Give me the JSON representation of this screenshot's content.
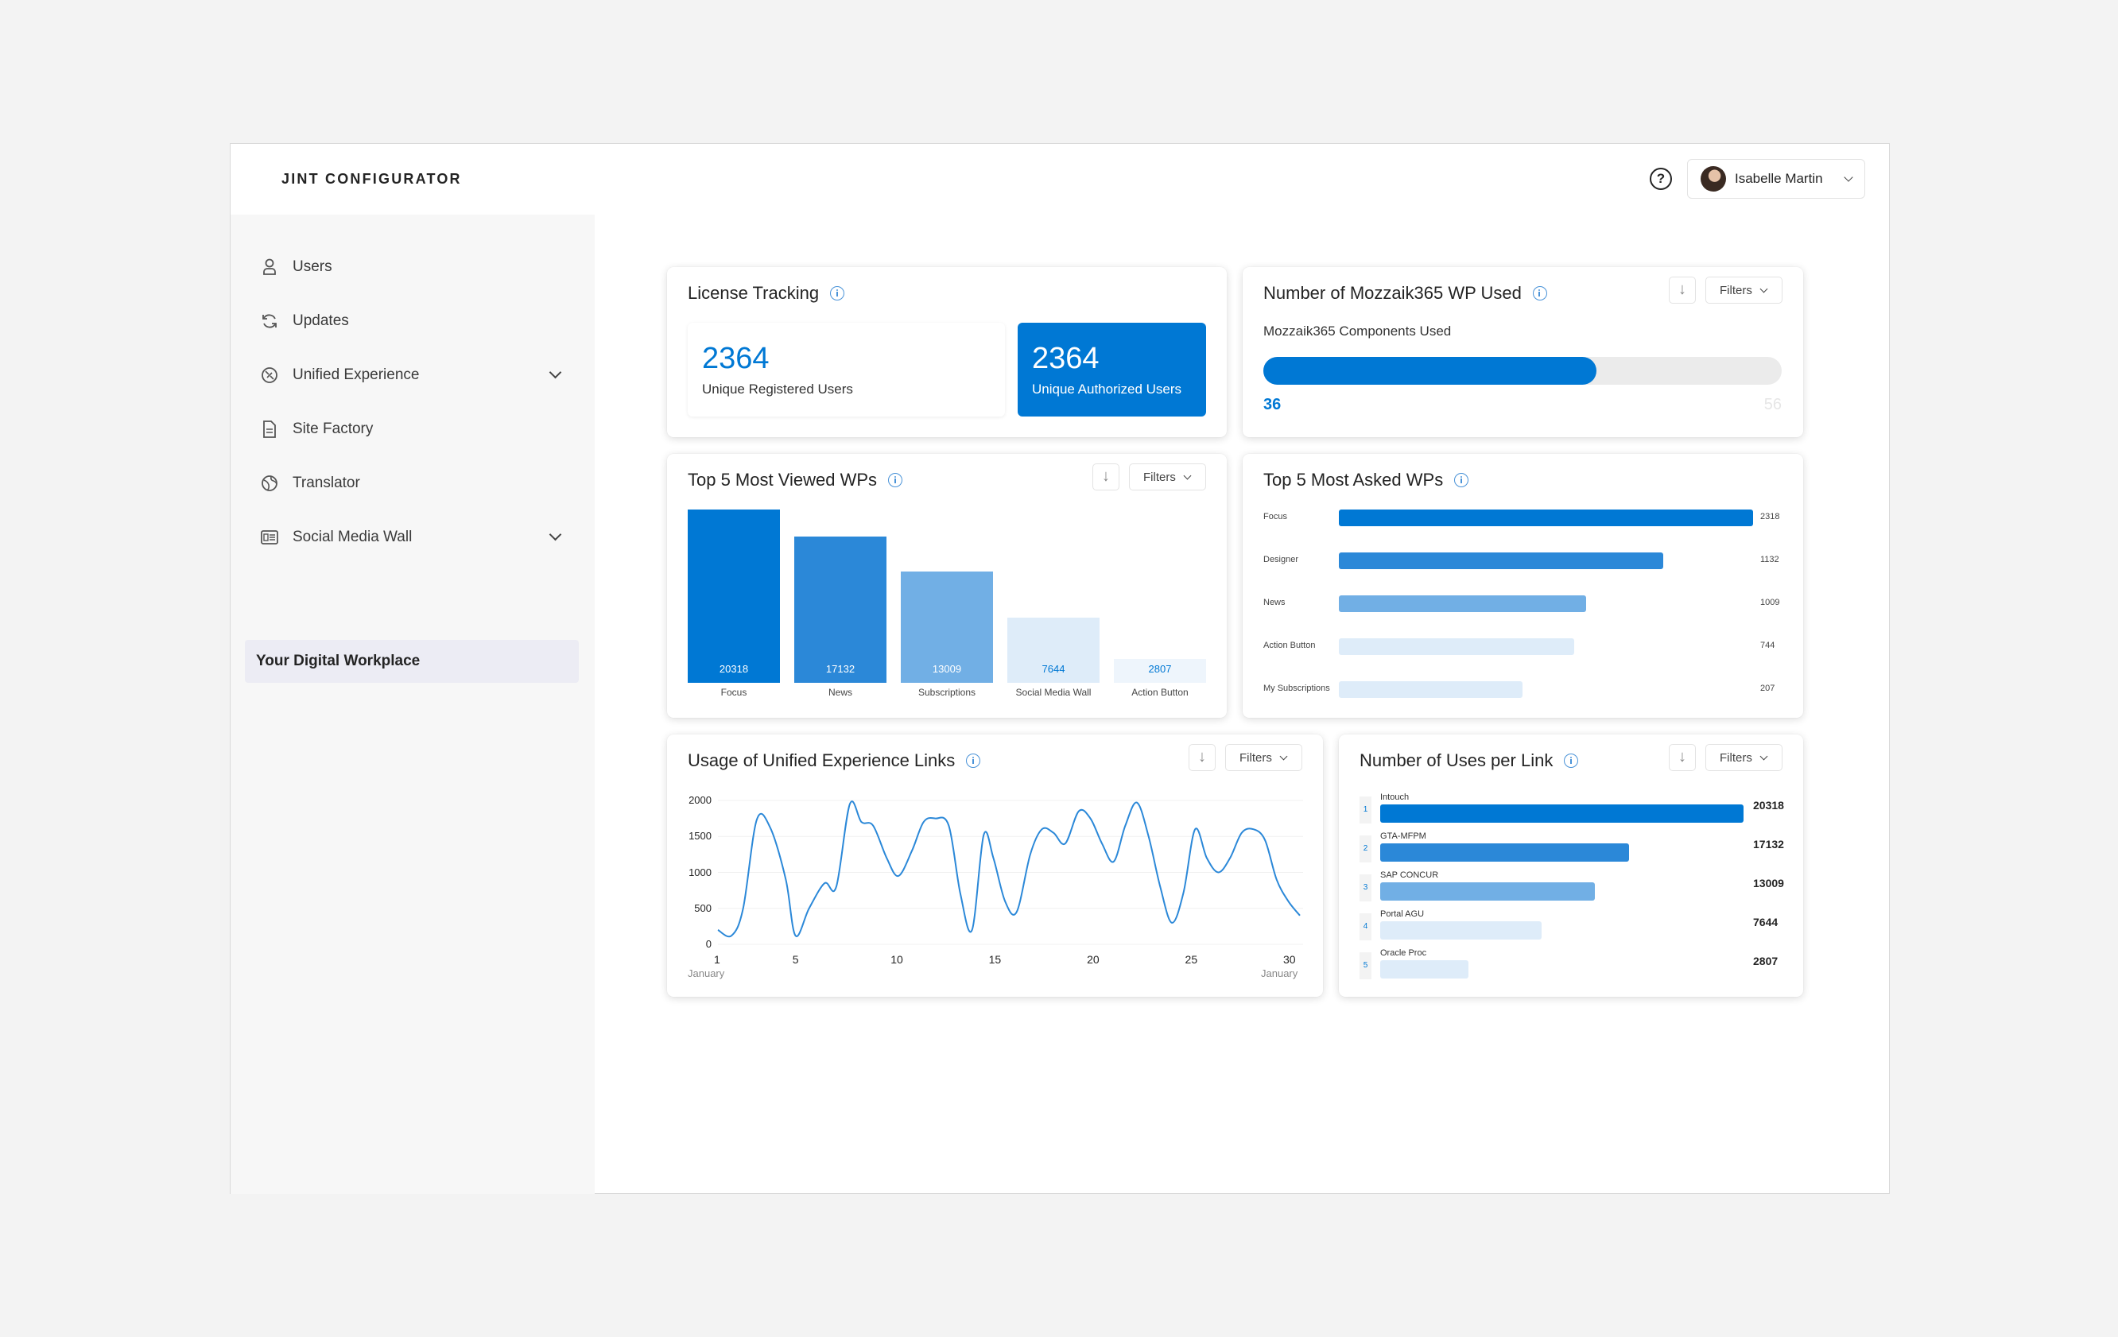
{
  "app": {
    "brand": "JINT CONFIGURATOR"
  },
  "header": {
    "help_icon": "help-circle-icon",
    "user_name": "Isabelle Martin"
  },
  "sidebar": {
    "items": [
      {
        "label": "Users",
        "icon": "user-icon"
      },
      {
        "label": "Updates",
        "icon": "refresh-icon"
      },
      {
        "label": "Unified Experience",
        "icon": "globe-link-icon",
        "expandable": true
      },
      {
        "label": "Site Factory",
        "icon": "document-icon"
      },
      {
        "label": "Translator",
        "icon": "globe-icon"
      },
      {
        "label": "Social Media Wall",
        "icon": "news-icon",
        "expandable": true
      },
      {
        "label": "Your Digital Workplace",
        "active": true
      }
    ]
  },
  "license": {
    "title": "License Tracking",
    "registered_value": "2364",
    "registered_label": "Unique Registered Users",
    "authorized_value": "2364",
    "authorized_label": "Unique Authorized Users"
  },
  "mozzaik": {
    "title": "Number of Mozzaik365 WP Used",
    "subtitle": "Mozzaik365 Components Used",
    "used": "36",
    "total": "56",
    "filters_label": "Filters"
  },
  "most_viewed": {
    "title": "Top 5 Most Viewed WPs",
    "filters_label": "Filters",
    "chart_data": {
      "type": "bar",
      "categories": [
        "Focus",
        "News",
        "Subscriptions",
        "Social Media Wall",
        "Action Button"
      ],
      "values": [
        20318,
        17132,
        13009,
        7644,
        2807
      ],
      "colors": [
        "#0078d4",
        "#2b88d8",
        "#71afe5",
        "#deecf9",
        "#eef5fc"
      ],
      "ylim": [
        0,
        20318
      ]
    }
  },
  "most_asked": {
    "title": "Top 5 Most Asked WPs",
    "chart_data": {
      "type": "bar",
      "orientation": "horizontal",
      "categories": [
        "Focus",
        "Designer",
        "News",
        "Action Button",
        "My Subscriptions"
      ],
      "values": [
        2318,
        1132,
        1009,
        744,
        207
      ],
      "colors": [
        "#0078d4",
        "#2b88d8",
        "#71afe5",
        "#deecf9",
        "#deecf9"
      ]
    }
  },
  "usage": {
    "title": "Usage of Unified Experience Links",
    "filters_label": "Filters",
    "chart_data": {
      "type": "line",
      "x_ticks": [
        "1",
        "5",
        "10",
        "15",
        "20",
        "25",
        "30"
      ],
      "x_sub_left": "January",
      "x_sub_right": "January",
      "y_ticks": [
        "2000",
        "1500",
        "1000",
        "500",
        "0"
      ],
      "ylim": [
        0,
        2000
      ],
      "xlim": [
        1,
        31
      ],
      "x": [
        1,
        1.7,
        2.3,
        3,
        3.7,
        4.5,
        5,
        5.7,
        6.5,
        7.1,
        7.8,
        8.4,
        9,
        9.7,
        10.3,
        11,
        11.6,
        12.2,
        12.9,
        13.5,
        14.1,
        14.7,
        15.2,
        15.8,
        16.4,
        17.1,
        17.7,
        18.3,
        18.9,
        19.6,
        20.2,
        20.8,
        21.4,
        22,
        22.6,
        23.2,
        23.8,
        24.4,
        25,
        25.6,
        26.2,
        26.8,
        27.4,
        28,
        28.6,
        29.2,
        29.8,
        30.4,
        31
      ],
      "values": [
        200,
        120,
        500,
        1730,
        1620,
        900,
        120,
        500,
        850,
        800,
        1950,
        1700,
        1650,
        1200,
        950,
        1300,
        1700,
        1750,
        1650,
        700,
        200,
        1520,
        1200,
        600,
        450,
        1250,
        1600,
        1550,
        1400,
        1850,
        1750,
        1400,
        1150,
        1650,
        1970,
        1500,
        800,
        300,
        720,
        1600,
        1200,
        1000,
        1200,
        1550,
        1600,
        1450,
        900,
        600,
        400
      ]
    }
  },
  "per_link": {
    "title": "Number of Uses per Link",
    "filters_label": "Filters",
    "chart_data": {
      "type": "bar",
      "orientation": "horizontal",
      "ranks": [
        "1",
        "2",
        "3",
        "4",
        "5"
      ],
      "categories": [
        "Intouch",
        "GTA-MFPM",
        "SAP CONCUR",
        "Portal AGU",
        "Oracle Proc"
      ],
      "values": [
        20318,
        17132,
        13009,
        7644,
        2807
      ],
      "colors": [
        "#0078d4",
        "#2b88d8",
        "#71afe5",
        "#deecf9",
        "#deecf9"
      ]
    }
  }
}
